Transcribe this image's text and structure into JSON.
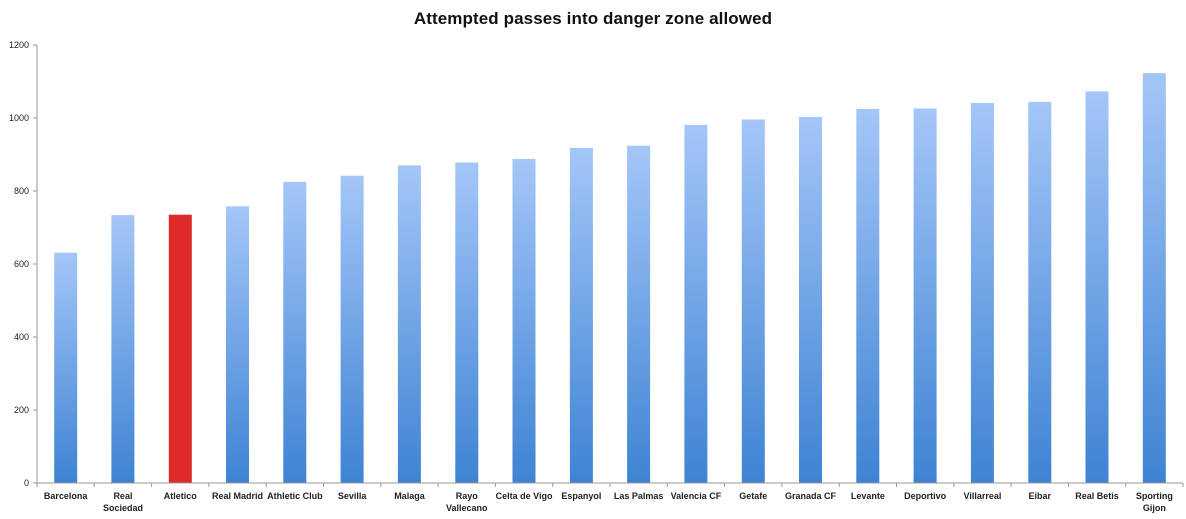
{
  "chart_data": {
    "type": "bar",
    "title": "Attempted passes into danger zone allowed",
    "xlabel": "",
    "ylabel": "",
    "ylim": [
      0,
      1200
    ],
    "yticks": [
      0,
      200,
      400,
      600,
      800,
      1000,
      1200
    ],
    "grid": false,
    "legend": "none",
    "categories": [
      [
        "Barcelona"
      ],
      [
        "Real",
        "Sociedad"
      ],
      [
        "Atletico"
      ],
      [
        "Real Madrid"
      ],
      [
        "Athletic Club"
      ],
      [
        "Sevilla"
      ],
      [
        "Malaga"
      ],
      [
        "Rayo",
        "Vallecano"
      ],
      [
        "Celta de Vigo"
      ],
      [
        "Espanyol"
      ],
      [
        "Las Palmas"
      ],
      [
        "Valencia CF"
      ],
      [
        "Getafe"
      ],
      [
        "Granada CF"
      ],
      [
        "Levante"
      ],
      [
        "Deportivo"
      ],
      [
        "Villarreal"
      ],
      [
        "Eibar"
      ],
      [
        "Real Betis"
      ],
      [
        "Sporting",
        "Gijon"
      ]
    ],
    "values": [
      631,
      734,
      735,
      758,
      825,
      842,
      870,
      878,
      888,
      918,
      924,
      981,
      996,
      1003,
      1025,
      1026,
      1041,
      1044,
      1073,
      1123
    ],
    "highlight_index": 2,
    "colors": {
      "bar_top": "#a4c6f8",
      "bar_bottom": "#3e83d3",
      "highlight": "#e02a2a",
      "axis": "#999999"
    }
  }
}
